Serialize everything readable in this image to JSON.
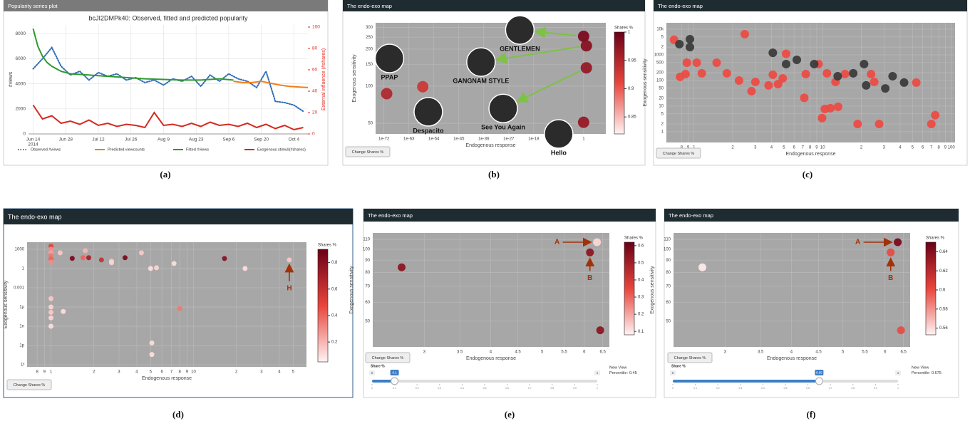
{
  "chart_data": [
    {
      "type": "line",
      "header": "Popularity series plot",
      "caption": "(a)",
      "title": "bcJI2DMPk40: Observed, fitted and predicted popularity",
      "ylabel": "#views",
      "y2label": "External influence (#shares)",
      "xlim": [
        -2,
        118
      ],
      "xticks": [
        {
          "value": 0,
          "label": "Jun 14"
        },
        {
          "value": 14,
          "label": "Jun 28"
        },
        {
          "value": 28,
          "label": "Jul 12"
        },
        {
          "value": 42,
          "label": "Jul 26"
        },
        {
          "value": 56,
          "label": "Aug 9"
        },
        {
          "value": 70,
          "label": "Aug 23"
        },
        {
          "value": 84,
          "label": "Sep 6"
        },
        {
          "value": 98,
          "label": "Sep 20"
        },
        {
          "value": 112,
          "label": "Oct 4"
        }
      ],
      "xtick_year": "2014",
      "ylim": [
        0,
        8700
      ],
      "yticks": [
        0,
        2000,
        4000,
        6000,
        8000
      ],
      "y2lim": [
        0,
        102
      ],
      "y2ticks": [
        0,
        20,
        40,
        60,
        80,
        100
      ],
      "y2color": "#e8261f",
      "grid": true,
      "series": [
        {
          "name": "Observed #views",
          "color": "#2f6db5",
          "dash": "dot",
          "x": [
            0,
            4,
            8,
            12,
            16,
            20,
            24,
            28,
            32,
            36,
            40,
            44,
            48,
            52,
            56,
            60,
            64,
            68,
            72,
            76,
            80,
            84,
            88,
            92,
            96,
            100,
            104,
            108,
            112,
            116
          ],
          "values": [
            5200,
            6000,
            6900,
            5400,
            4700,
            5000,
            4300,
            4900,
            4600,
            4800,
            4300,
            4500,
            4100,
            4300,
            3900,
            4400,
            4200,
            4600,
            3800,
            4700,
            4200,
            4800,
            4400,
            4200,
            3700,
            5000,
            2600,
            2500,
            2300,
            1800
          ]
        },
        {
          "name": "Predicted viewcounts",
          "color": "#f07f1a",
          "x": [
            86,
            90,
            94,
            98,
            102,
            106,
            110,
            114,
            118
          ],
          "values": [
            4200,
            4100,
            4100,
            4200,
            4050,
            3900,
            3800,
            3750,
            3700
          ]
        },
        {
          "name": "Fitted #views",
          "color": "#2e9a2e",
          "x": [
            0,
            2,
            4,
            6,
            8,
            12,
            16,
            24,
            32,
            40,
            48,
            56,
            64,
            72,
            80,
            86
          ],
          "values": [
            8400,
            7000,
            6200,
            5700,
            5400,
            5000,
            4800,
            4700,
            4600,
            4500,
            4400,
            4350,
            4300,
            4300,
            4400,
            4300
          ]
        },
        {
          "name": "Exogenous stimuli(#shares)",
          "color": "#d42a20",
          "axis": "y2",
          "x": [
            0,
            4,
            8,
            12,
            16,
            20,
            24,
            28,
            32,
            36,
            40,
            44,
            48,
            52,
            56,
            60,
            64,
            68,
            72,
            76,
            80,
            84,
            88,
            92,
            96,
            100,
            104,
            108,
            112,
            116
          ],
          "values": [
            27,
            14,
            17,
            10,
            12,
            9,
            13,
            8,
            10,
            7,
            9,
            8,
            6,
            20,
            8,
            9,
            7,
            10,
            7,
            11,
            8,
            9,
            7,
            10,
            6,
            9,
            5,
            8,
            4,
            6
          ]
        }
      ]
    },
    {
      "type": "scatter",
      "header": "The endo-exo map",
      "caption": "(b)",
      "button": "Change Shares %",
      "xlabel": "Endogenous response",
      "ylabel": "Exogenous sensitivity",
      "xscale": "log",
      "yscale": "log",
      "grid": true,
      "xlim": [
        1e-75,
        100000000.0
      ],
      "xticks": [
        1e-72,
        1e-63,
        1e-54,
        1e-45,
        1e-36,
        1e-27,
        1e-18,
        1
      ],
      "ylim": [
        41,
        327
      ],
      "yticks": [
        50,
        100,
        150,
        200,
        250,
        300
      ],
      "colorbar_title": "Shares %",
      "colorscale": [
        "#fff3f3",
        "#e8453c",
        "#6b0016"
      ],
      "clim": [
        0.82,
        1
      ],
      "cticks": [
        0.85,
        0.9,
        0.95,
        1
      ],
      "series": [
        {
          "x": [
            1,
            10,
            10,
            1,
            1e-71,
            1e-58,
            1e-70,
            1e-37,
            1e-23,
            1e-56,
            1e-29,
            1e-09
          ],
          "values": [
            254,
            213,
            141,
            51,
            87,
            99,
            168,
            157,
            286,
            62,
            66,
            41
          ],
          "shares": [
            0.99,
            0.98,
            0.97,
            0.97,
            0.95,
            0.93,
            null,
            null,
            null,
            null,
            null,
            null
          ],
          "point_labels": [
            null,
            null,
            null,
            null,
            null,
            null,
            "PPAP",
            "GANGNAM STYLE",
            "GENTLEMEN",
            "Despacito",
            "See You Again",
            "Hello"
          ]
        }
      ]
    },
    {
      "type": "scatter",
      "header": "The endo-exo map",
      "caption": "(c)",
      "button": "Change Shares %",
      "xlabel": "Endogenous response",
      "ylabel": "Exogenous sensitivity",
      "xscale": "log",
      "yscale": "log",
      "grid": true,
      "xlim": [
        0.61,
        107
      ],
      "xticks": [
        {
          "value": 0.8,
          "label": "8"
        },
        {
          "value": 0.9,
          "label": "9"
        },
        1,
        2,
        3,
        4,
        5,
        6,
        7,
        8,
        9,
        10,
        {
          "value": 20,
          "label": "2"
        },
        {
          "value": 30,
          "label": "3"
        },
        {
          "value": 40,
          "label": "4"
        },
        {
          "value": 50,
          "label": "5"
        },
        {
          "value": 60,
          "label": "6"
        },
        {
          "value": 70,
          "label": "7"
        },
        {
          "value": 80,
          "label": "8"
        },
        {
          "value": 90,
          "label": "9"
        },
        100
      ],
      "ylim": [
        0.38,
        17800
      ],
      "yticks": [
        1,
        2,
        5,
        10,
        20,
        50,
        100,
        200,
        500,
        1000,
        {
          "value": 2000,
          "label": "2"
        },
        {
          "value": 5000,
          "label": "5"
        },
        {
          "value": 10000,
          "label": "10k"
        }
      ],
      "series": [
        {
          "color": "#ee4a42",
          "x": [
            0.7,
            2.48,
            0.86,
            0.88,
            1.05,
            1.5,
            0.78,
            1.15,
            1.8,
            2.24,
            3.0,
            3.8,
            2.8,
            4.1,
            4.5,
            4.9,
            7.4,
            9.3,
            10.8,
            12.6,
            14.9,
            7.2,
            10.4,
            11.5,
            13.2,
            9.9,
            18.7,
            27.5,
            23.8,
            25.2,
            53.5,
            70,
            75,
            5.2
          ],
          "values": [
            3850,
            6400,
            178,
            495,
            495,
            495,
            138,
            190,
            190,
            100,
            88,
            64,
            38,
            167,
            72,
            121,
            178,
            436,
            190,
            88,
            178,
            21,
            7.7,
            8.3,
            9.4,
            3.4,
            2.0,
            2.0,
            178,
            88,
            83,
            2.0,
            4.4,
            1100
          ]
        },
        {
          "color": "#3a3a3a",
          "x": [
            0.77,
            0.93,
            0.93,
            4.1,
            5.2,
            6.3,
            8.6,
            13.1,
            17.3,
            21,
            21.8,
            30.7,
            35,
            43
          ],
          "values": [
            2600,
            4080,
            2000,
            1200,
            436,
            640,
            436,
            146,
            190,
            436,
            64,
            49,
            146,
            83
          ]
        }
      ]
    },
    {
      "type": "scatter",
      "header": "The endo-exo map",
      "caption": "(d)",
      "button": "Change Shares %",
      "xlabel": "Endogenous response",
      "ylabel": "Exogenous sensitivity",
      "xscale": "log",
      "yscale": "log",
      "grid": true,
      "xlim": [
        0.68,
        62
      ],
      "xticks": [
        {
          "value": 0.8,
          "label": "8"
        },
        {
          "value": 0.9,
          "label": "9"
        },
        1,
        2,
        3,
        4,
        5,
        6,
        7,
        8,
        9,
        10,
        {
          "value": 20,
          "label": "2"
        },
        {
          "value": 30,
          "label": "3"
        },
        {
          "value": 40,
          "label": "4"
        },
        {
          "value": 50,
          "label": "5"
        }
      ],
      "ylim": [
        4.7e-16,
        12500
      ],
      "yticks": [
        1000,
        1,
        0.001,
        {
          "value": 1e-06,
          "label": "1µ"
        },
        {
          "value": 1e-09,
          "label": "1n"
        },
        {
          "value": 1e-12,
          "label": "1p"
        },
        {
          "value": 1e-15,
          "label": "1f"
        }
      ],
      "colorbar_title": "Shares %",
      "colorscale": [
        "#fff3f3",
        "#e8453c",
        "#6b0016"
      ],
      "clim": [
        0.05,
        0.9
      ],
      "cticks": [
        0.2,
        0.4,
        0.6,
        0.8
      ],
      "annotations": [
        "H"
      ],
      "series": [
        {
          "x": [
            1,
            1,
            1,
            1,
            1,
            1,
            1,
            1,
            1,
            1,
            1,
            1.16,
            1.41,
            1.74,
            1.68,
            1.84,
            2.26,
            2.66,
            2.66,
            3.31,
            4.31,
            5.0,
            5.5,
            7.3,
            8.0,
            1.22,
            16.5,
            23,
            47,
            5.1,
            5.1
          ],
          "values": [
            3000,
            1000,
            300,
            100,
            30,
            10,
            2e-05,
            1e-06,
            1.5e-07,
            2e-08,
            1e-09,
            280,
            38,
            600,
            48,
            48,
            22,
            14,
            8,
            48,
            280,
            1,
            1.3,
            6,
            6e-07,
            2e-07,
            36,
            1,
            22,
            2.5e-12,
            4e-14
          ],
          "shares": [
            0.5,
            0.3,
            0.25,
            0.35,
            0.4,
            0.3,
            0.15,
            0.12,
            0.15,
            0.12,
            0.1,
            0.15,
            0.85,
            0.2,
            0.4,
            0.7,
            0.6,
            0.15,
            0.12,
            0.85,
            0.15,
            0.1,
            0.12,
            0.1,
            0.35,
            0.1,
            0.8,
            0.1,
            0.15,
            0.1,
            0.1
          ]
        }
      ]
    },
    {
      "type": "scatter",
      "header": "The endo-exo map",
      "caption": "(e)",
      "button": "Change Shares %",
      "xlabel": "Endogenous response",
      "ylabel": "Exogenous sensitivity",
      "xscale": "log",
      "yscale": "log",
      "grid": true,
      "xlim": [
        2.4,
        6.69
      ],
      "xticks": [
        3,
        3.5,
        4,
        4.5,
        5,
        5.5,
        6,
        6.5
      ],
      "ylim": [
        39,
        117
      ],
      "yticks": [
        50,
        60,
        70,
        80,
        90,
        100,
        110
      ],
      "colorbar_title": "Shares %",
      "colorscale": [
        "#fff3f3",
        "#e8453c",
        "#6b0016"
      ],
      "clim": [
        0.08,
        0.62
      ],
      "cticks": [
        0.1,
        0.2,
        0.3,
        0.4,
        0.5,
        0.6
      ],
      "annotations": [
        "A",
        "B"
      ],
      "series": [
        {
          "x": [
            2.72,
            6.34,
            6.15,
            6.43
          ],
          "values": [
            84,
            107,
            97,
            45.8
          ],
          "shares": [
            0.55,
            0.12,
            0.55,
            0.55
          ]
        }
      ],
      "slider": {
        "label": "Share %",
        "min": 0,
        "max": 1,
        "value": 0.1,
        "ticks": [
          0,
          0.1,
          0.2,
          0.3,
          0.4,
          0.5,
          0.6,
          0.7,
          0.8,
          0.9,
          1
        ]
      },
      "percentile_title": "New View",
      "percentile_label": "Percentile:",
      "percentile": 0.45
    },
    {
      "type": "scatter",
      "header": "The endo-exo map",
      "caption": "(f)",
      "button": "Change Shares %",
      "xlabel": "Endogenous response",
      "ylabel": "Exogenous sensitivity",
      "xscale": "log",
      "yscale": "log",
      "grid": true,
      "xlim": [
        2.4,
        6.69
      ],
      "xticks": [
        3,
        3.5,
        4,
        4.5,
        5,
        5.5,
        6,
        6.5
      ],
      "ylim": [
        39,
        117
      ],
      "yticks": [
        50,
        60,
        70,
        80,
        90,
        100,
        110
      ],
      "colorbar_title": "Shares %",
      "colorscale": [
        "#fff3f3",
        "#e8453c",
        "#6b0016"
      ],
      "clim": [
        0.553,
        0.65
      ],
      "cticks": [
        0.56,
        0.58,
        0.6,
        0.62,
        0.64
      ],
      "annotations": [
        "A",
        "B"
      ],
      "series": [
        {
          "x": [
            2.72,
            6.34,
            6.15,
            6.43
          ],
          "values": [
            84,
            107,
            97,
            45.8
          ],
          "shares": [
            0.555,
            0.645,
            0.6,
            0.6
          ]
        }
      ],
      "slider": {
        "label": "Share %",
        "min": 0,
        "max": 1,
        "value": 0.65,
        "ticks": [
          0,
          0.1,
          0.2,
          0.3,
          0.4,
          0.5,
          0.6,
          0.7,
          0.8,
          0.9,
          1
        ]
      },
      "percentile_title": "New View",
      "percentile_label": "Percentile:",
      "percentile": 0.675
    }
  ]
}
